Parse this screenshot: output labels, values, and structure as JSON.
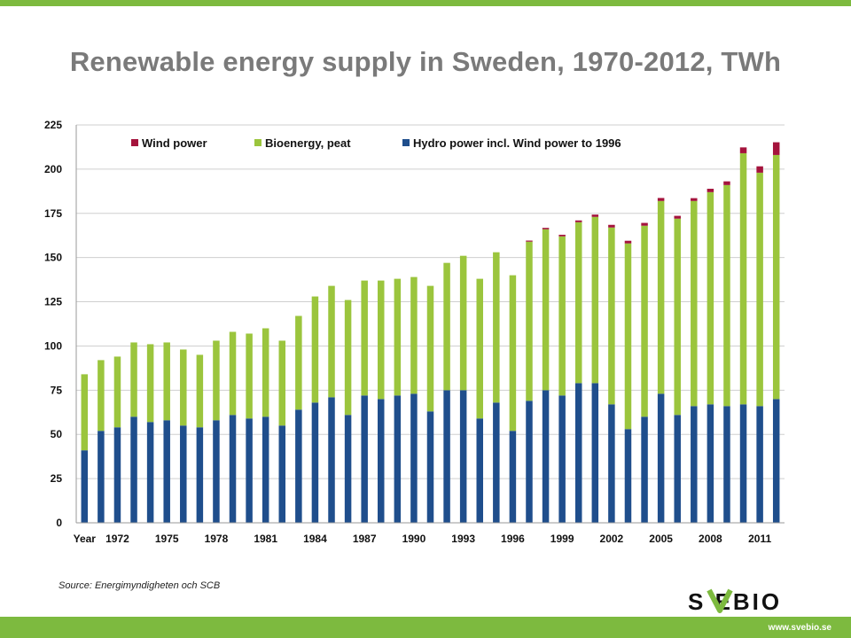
{
  "title": "Renewable energy supply in Sweden, 1970-2012, TWh",
  "source": "Source: Energimyndigheten och SCB",
  "logo": {
    "text": "S  EBIO"
  },
  "website": "www.svebio.se",
  "colors": {
    "wind": "#a4133c",
    "bio": "#9bc53d",
    "hydro": "#1f4e8c",
    "brand_green": "#7dba3f"
  },
  "chart_data": {
    "type": "bar",
    "stacked": true,
    "x_first_label": "Year",
    "categories": [
      "1970",
      "1971",
      "1972",
      "1973",
      "1974",
      "1975",
      "1976",
      "1977",
      "1978",
      "1979",
      "1980",
      "1981",
      "1982",
      "1983",
      "1984",
      "1985",
      "1986",
      "1987",
      "1988",
      "1989",
      "1990",
      "1991",
      "1992",
      "1993",
      "1994",
      "1995",
      "1996",
      "1997",
      "1998",
      "1999",
      "2000",
      "2001",
      "2002",
      "2003",
      "2004",
      "2005",
      "2006",
      "2007",
      "2008",
      "2009",
      "2010",
      "2011",
      "2012"
    ],
    "tick_labels": [
      "Year",
      "1972",
      "1975",
      "1978",
      "1981",
      "1984",
      "1987",
      "1990",
      "1993",
      "1996",
      "1999",
      "2002",
      "2005",
      "2008",
      "2011"
    ],
    "series": [
      {
        "name": "Hydro power incl. Wind power to 1996",
        "color": "#1f4e8c",
        "values": [
          41,
          52,
          54,
          60,
          57,
          58,
          55,
          54,
          58,
          61,
          59,
          60,
          55,
          64,
          68,
          71,
          61,
          72,
          70,
          72,
          73,
          63,
          75,
          75,
          59,
          68,
          52,
          69,
          75,
          72,
          79,
          79,
          67,
          53,
          60,
          73,
          61,
          66,
          67,
          66,
          67,
          66,
          70
        ]
      },
      {
        "name": "Bioenergy, peat",
        "color": "#9bc53d",
        "values": [
          43,
          40,
          40,
          42,
          44,
          44,
          43,
          41,
          45,
          47,
          48,
          50,
          48,
          53,
          60,
          63,
          65,
          65,
          67,
          66,
          66,
          71,
          72,
          76,
          79,
          85,
          88,
          90,
          91,
          90,
          91,
          94,
          100,
          105,
          108,
          109,
          111,
          116,
          120,
          125,
          142,
          132,
          138
        ]
      },
      {
        "name": "Wind power",
        "color": "#a4133c",
        "values": [
          0,
          0,
          0,
          0,
          0,
          0,
          0,
          0,
          0,
          0,
          0,
          0,
          0,
          0,
          0,
          0,
          0,
          0,
          0,
          0,
          0,
          0,
          0,
          0,
          0,
          0,
          0,
          0.6,
          0.8,
          0.9,
          1.0,
          1.3,
          1.5,
          1.5,
          1.6,
          1.7,
          1.6,
          1.6,
          1.9,
          2.1,
          3.3,
          3.6,
          7.2
        ]
      }
    ],
    "ylim": [
      0,
      225
    ],
    "yticks": [
      0,
      25,
      50,
      75,
      100,
      125,
      150,
      175,
      200,
      225
    ],
    "legend": {
      "position": "top",
      "order": [
        "Wind power",
        "Bioenergy, peat",
        "Hydro power incl. Wind power to 1996"
      ]
    },
    "grid": true
  }
}
